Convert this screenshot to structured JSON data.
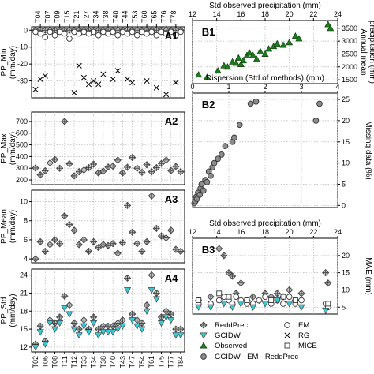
{
  "colors": {
    "reddprec": "#c8c8c8",
    "gcidw": "#3cc8d2",
    "observed": "#1e7a1e",
    "em": "#ffffff",
    "rg": "#000000",
    "mice": "#ffffff",
    "gem": "#8c8c8c",
    "grid": "#b4b4b4"
  },
  "stations": [
    "T02",
    "T04",
    "T06",
    "T07",
    "T08",
    "T09",
    "T11",
    "T15",
    "T12",
    "T21",
    "T33",
    "T27",
    "T34",
    "T36",
    "T38",
    "T39",
    "T40",
    "T42",
    "T43",
    "T44",
    "T47",
    "T53",
    "T54",
    "T60",
    "T61",
    "T65",
    "T75",
    "T76",
    "T77",
    "T78",
    "T84"
  ],
  "legend": {
    "items": [
      {
        "label": "ReddPrec",
        "marker": "diamond-cross"
      },
      {
        "label": "EM",
        "marker": "circle"
      },
      {
        "label": "GCIDW",
        "marker": "triangle-down"
      },
      {
        "label": "RG",
        "marker": "x"
      },
      {
        "label": "Observed",
        "marker": "triangle-up"
      },
      {
        "label": "MICE",
        "marker": "square"
      },
      {
        "label": "GCIDW - EM - ReddPrec",
        "marker": "gray-circle"
      }
    ]
  },
  "chart_data": [
    {
      "panel": "A1",
      "type": "scatter",
      "ylabel": "PP_Min\n(mm/day)",
      "ylim": [
        -40,
        2
      ],
      "yticks": [
        0,
        -10,
        -20,
        -30
      ],
      "top_tick_labels": [
        "T04",
        "T07",
        "T09",
        "T15",
        "T21",
        "T27",
        "T34",
        "T38",
        "T40",
        "T44",
        "T53",
        "T60",
        "T65",
        "T76",
        "T78"
      ],
      "series": [
        {
          "name": "ReddPrec",
          "values": [
            0,
            0,
            0,
            0,
            0,
            0,
            0,
            0,
            0,
            0,
            0,
            0,
            0,
            0,
            0,
            0,
            0,
            0,
            0,
            0,
            0,
            0,
            0,
            0,
            0,
            0,
            0,
            0,
            0,
            0,
            0
          ]
        },
        {
          "name": "EM",
          "values": [
            -1,
            -2,
            -4,
            -1,
            -3,
            -1,
            -2,
            -5,
            -1,
            -2,
            -1,
            -2,
            -1,
            -3,
            -1,
            -2,
            -1,
            -3,
            -1,
            -2,
            -1,
            -3,
            -1,
            -2,
            -1,
            -3,
            -1,
            -2,
            -1,
            -3,
            -1
          ]
        },
        {
          "name": "RG",
          "values": [
            -35,
            -29,
            -27,
            null,
            null,
            null,
            null,
            null,
            -37,
            -21,
            -28,
            -32,
            -30,
            -32,
            -26,
            null,
            -29,
            -24,
            null,
            -29,
            -31,
            null,
            null,
            -30,
            null,
            -34,
            null,
            -38,
            null,
            -31,
            null
          ]
        }
      ]
    },
    {
      "panel": "A2",
      "type": "scatter",
      "ylabel": "PP_Max\n(mm/day)",
      "ylim": [
        160,
        780
      ],
      "yticks": [
        200,
        300,
        400,
        500,
        600,
        700
      ],
      "series": [
        {
          "name": "ReddPrec",
          "values": [
            302,
            243,
            278,
            345,
            375,
            300,
            700,
            338,
            235,
            270,
            285,
            305,
            335,
            260,
            275,
            310,
            318,
            370,
            260,
            308,
            392,
            300,
            265,
            330,
            270,
            305,
            340,
            370,
            280,
            315,
            270
          ]
        }
      ]
    },
    {
      "panel": "A3",
      "type": "scatter",
      "ylabel": "PP_Mean\n(mm/day)",
      "ylim": [
        3.6,
        11.2
      ],
      "yticks": [
        4,
        6,
        8,
        10
      ],
      "series": [
        {
          "name": "ReddPrec",
          "values": [
            4.0,
            5.8,
            4.8,
            5.5,
            6.0,
            5.6,
            8.5,
            7.6,
            7.0,
            5.5,
            6.0,
            4.8,
            5.8,
            5.2,
            5.5,
            5.4,
            5.6,
            4.6,
            5.7,
            9.6,
            6.8,
            5.6,
            4.8,
            5.8,
            10.6,
            7.2,
            6.4,
            6.2,
            7.0,
            5.0,
            4.8
          ]
        }
      ]
    },
    {
      "panel": "A4",
      "type": "scatter",
      "ylabel": "PP_Std\n(mm/day)",
      "ylim": [
        11.2,
        25
      ],
      "yticks": [
        12,
        15,
        18,
        21,
        24
      ],
      "series": [
        {
          "name": "ReddPrec",
          "values": [
            12.5,
            15.5,
            13.0,
            16.5,
            16.0,
            17.0,
            20.5,
            19.0,
            16.0,
            15.0,
            16.5,
            15.0,
            17.0,
            15.0,
            15.5,
            15.5,
            15.5,
            16.0,
            16.5,
            23.5,
            17.5,
            16.5,
            16.0,
            19.0,
            24.0,
            21.0,
            17.0,
            18.0,
            17.5,
            15.0,
            15.0
          ]
        },
        {
          "name": "GCIDW",
          "values": [
            12.0,
            14.5,
            12.5,
            16.0,
            15.0,
            16.0,
            18.5,
            17.5,
            15.0,
            14.0,
            15.5,
            14.5,
            16.0,
            14.0,
            14.5,
            14.5,
            14.5,
            15.0,
            15.5,
            21.5,
            16.5,
            15.5,
            15.0,
            18.0,
            21.5,
            20.0,
            16.0,
            17.0,
            16.5,
            14.0,
            14.0
          ]
        }
      ]
    },
    {
      "panel": "B1",
      "type": "scatter",
      "xlabel": "Std observed precipitation (mm)",
      "ylabel": "Annual mean\nprecipitation (mm)",
      "xlim": [
        12,
        24
      ],
      "ylim": [
        1350,
        3800
      ],
      "xticks": [
        12,
        14,
        16,
        18,
        20,
        22,
        24
      ],
      "yticks": [
        1500,
        2000,
        2500,
        3000,
        3500
      ],
      "series": [
        {
          "name": "Observed",
          "x": [
            12.5,
            13.2,
            14.1,
            14.6,
            14.9,
            15.3,
            15.6,
            15.8,
            16.0,
            16.2,
            16.5,
            16.7,
            17.0,
            17.3,
            17.6,
            18.0,
            18.3,
            18.7,
            19.0,
            19.5,
            20.0,
            20.5,
            20.8,
            23.2,
            23.4
          ],
          "y": [
            1700,
            1600,
            1850,
            2050,
            2000,
            2200,
            2150,
            2350,
            2100,
            2250,
            2450,
            2550,
            2450,
            2300,
            2600,
            2500,
            2700,
            2800,
            2900,
            2850,
            2950,
            3200,
            3100,
            3650,
            3500
          ]
        }
      ]
    },
    {
      "panel": "B2",
      "type": "scatter",
      "xlabel": "Dispersion (Std of methods) (mm)",
      "ylabel": "Missing data (%)",
      "xlim": [
        0,
        4
      ],
      "ylim": [
        -0.5,
        26.5
      ],
      "xticks": [
        0,
        1,
        2,
        3,
        4
      ],
      "yticks": [
        0,
        5,
        10,
        15,
        20,
        25
      ],
      "series": [
        {
          "name": "GCIDW - EM - ReddPrec",
          "x": [
            0.05,
            0.08,
            0.1,
            0.12,
            0.15,
            0.2,
            0.22,
            0.25,
            0.3,
            0.35,
            0.4,
            0.45,
            0.5,
            0.55,
            0.6,
            0.7,
            0.8,
            0.9,
            1.1,
            1.15,
            1.3,
            1.6,
            1.75,
            3.4,
            3.5
          ],
          "y": [
            0.5,
            1.0,
            2.0,
            1.5,
            3.0,
            2.5,
            4.0,
            5.0,
            3.5,
            6.0,
            5.5,
            8.0,
            7.0,
            9.0,
            10.0,
            11.0,
            12.0,
            14.0,
            15.0,
            16.0,
            19.0,
            24.0,
            24.5,
            20.0,
            24.0
          ]
        }
      ]
    },
    {
      "panel": "B3",
      "type": "scatter",
      "xlabel": "Std observed precipitation (mm)",
      "ylabel": "MAE (mm)",
      "xlim": [
        12,
        24
      ],
      "ylim": [
        3,
        25
      ],
      "xticks": [
        12,
        14,
        16,
        18,
        20,
        22,
        24
      ],
      "yticks": [
        5,
        10,
        15,
        20
      ],
      "series": [
        {
          "name": "ReddPrec",
          "x": [
            12.5,
            13.5,
            14.2,
            14.6,
            15.0,
            15.3,
            15.6,
            16.0,
            16.5,
            17.0,
            17.5,
            18.0,
            18.5,
            19.0,
            19.5,
            20.0,
            20.5,
            21.0,
            23.0,
            23.2
          ],
          "y": [
            7,
            8,
            22,
            20,
            15,
            14,
            9,
            12,
            7,
            8,
            7,
            9,
            8,
            9,
            8,
            10,
            7,
            9,
            15,
            12
          ]
        },
        {
          "name": "EM",
          "x": [
            12.5,
            13.5,
            14.2,
            14.6,
            15.0,
            15.3,
            15.6,
            16.0,
            16.5,
            17.0,
            17.5,
            18.0,
            18.5,
            19.0,
            19.5,
            20.0,
            20.5,
            21.0,
            23.0,
            23.2
          ],
          "y": [
            6,
            6,
            7,
            8,
            7,
            6,
            8,
            7,
            6,
            6,
            7,
            8,
            6,
            7,
            6,
            8,
            6,
            7,
            6,
            5
          ]
        },
        {
          "name": "GCIDW",
          "x": [
            12.5,
            13.5,
            14.6,
            15.3,
            16.0,
            17.0,
            18.0,
            19.0,
            20.0,
            21.0,
            23.0
          ],
          "y": [
            5,
            5,
            6,
            5,
            6,
            5,
            6,
            7,
            6,
            5,
            4
          ]
        },
        {
          "name": "MICE",
          "x": [
            12.5,
            14.2,
            15.0,
            16.5,
            18.5,
            19.5,
            20.5,
            23.2
          ],
          "y": [
            7,
            9,
            8,
            7,
            7,
            8,
            7,
            6
          ]
        }
      ]
    }
  ]
}
